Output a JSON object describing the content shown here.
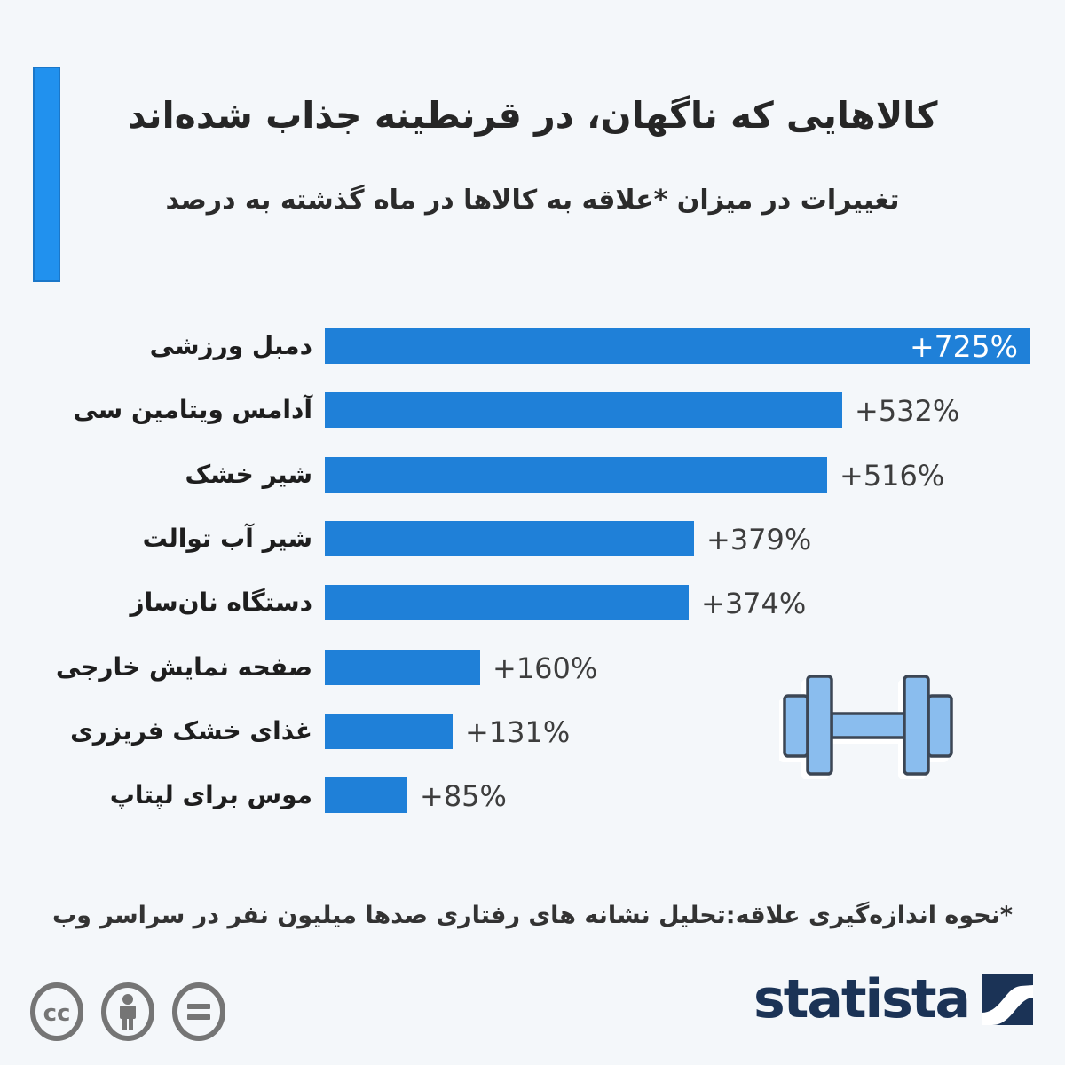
{
  "page": {
    "background": "#f4f7fa",
    "accent_color": "#2191ee"
  },
  "chart_data": {
    "type": "bar",
    "orientation": "horizontal",
    "title": "کالاهایی که ناگهان، در قرنطینه جذاب شده‌اند",
    "subtitle": "تغییرات در میزان *علاقه به کالاها در ماه گذشته به درصد",
    "categories": [
      "دمبل ورزشی",
      "آدامس ویتامین سی",
      "شیر خشک",
      "شیر آب توالت",
      "دستگاه نان‌ساز",
      "صفحه نمایش خارجی",
      "غذای خشک فریزری",
      "موس برای لپتاپ"
    ],
    "values": [
      725,
      532,
      516,
      379,
      374,
      160,
      131,
      85
    ],
    "value_labels": [
      "+725%",
      "+532%",
      "+516%",
      "+379%",
      "+374%",
      "+160%",
      "+131%",
      "+85%"
    ],
    "xlim": [
      0,
      725
    ],
    "bar_color": "#1f80d8",
    "value_label_color": "#3d3d3d",
    "inside_label_indices": [
      0
    ],
    "inside_label_color": "#ffffff",
    "grid": false,
    "legend": false
  },
  "illustration": {
    "name": "dumbbell-icon",
    "fill": "#8abdee",
    "stroke": "#3c4654"
  },
  "footnote": "*نحوه اندازه‌گیری علاقه:تحلیل نشانه های رفتاری صدها میلیون نفر در سراسر وب",
  "footer": {
    "license_icons": [
      "creative-commons",
      "attribution",
      "no-derivatives"
    ],
    "brand": "statista",
    "brand_color": "#1b3356",
    "icon_color": "#757575"
  }
}
